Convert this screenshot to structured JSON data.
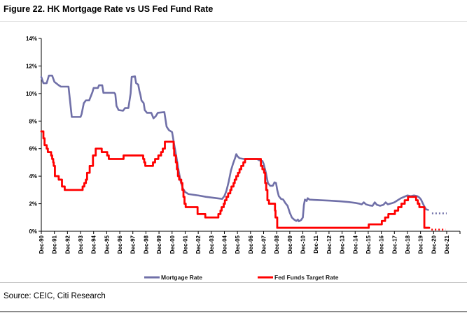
{
  "title": "Figure 22. HK Mortgage Rate vs US Fed Fund Rate",
  "source": "Source: CEIC, Citi Research",
  "chart_data": {
    "type": "line",
    "title": "Figure 22. HK Mortgage Rate vs US Fed Fund Rate",
    "xlabel": "",
    "ylabel": "",
    "gridlines": false,
    "legend_position": "bottom",
    "y_axis": {
      "min": 0,
      "max": 14,
      "step": 2,
      "suffix": "%"
    },
    "y_ticks": [
      "0%",
      "2%",
      "4%",
      "6%",
      "8%",
      "10%",
      "12%",
      "14%"
    ],
    "x_axis": {
      "first": "Dec-90",
      "last": "Dec-21",
      "anchor_year": 1990.92,
      "end_year": 2021.92
    },
    "x_ticks": [
      "Dec-90",
      "Dec-91",
      "Dec-92",
      "Dec-93",
      "Dec-94",
      "Dec-95",
      "Dec-96",
      "Dec-97",
      "Dec-98",
      "Dec-99",
      "Dec-00",
      "Dec-01",
      "Dec-02",
      "Dec-03",
      "Dec-04",
      "Dec-05",
      "Dec-06",
      "Dec-07",
      "Dec-08",
      "Dec-09",
      "Dec-10",
      "Dec-11",
      "Dec-12",
      "Dec-13",
      "Dec-14",
      "Dec-15",
      "Dec-16",
      "Dec-17",
      "Dec-18",
      "Dec-19",
      "Dec-20",
      "Dec-21"
    ],
    "series": [
      {
        "name": "Mortgage Rate",
        "color": "#7070A8",
        "mode": "linear",
        "width": 2.6,
        "points": [
          [
            1990.92,
            11.2
          ],
          [
            1991.08,
            10.75
          ],
          [
            1991.33,
            10.75
          ],
          [
            1991.5,
            11.3
          ],
          [
            1991.75,
            11.3
          ],
          [
            1991.92,
            10.85
          ],
          [
            1992.25,
            10.6
          ],
          [
            1992.42,
            10.5
          ],
          [
            1993.0,
            10.5
          ],
          [
            1993.17,
            9.0
          ],
          [
            1993.25,
            8.3
          ],
          [
            1993.92,
            8.3
          ],
          [
            1994.0,
            8.5
          ],
          [
            1994.17,
            9.3
          ],
          [
            1994.33,
            9.5
          ],
          [
            1994.58,
            9.5
          ],
          [
            1994.83,
            10.1
          ],
          [
            1994.92,
            10.4
          ],
          [
            1995.25,
            10.4
          ],
          [
            1995.33,
            10.6
          ],
          [
            1995.58,
            10.6
          ],
          [
            1995.67,
            10.05
          ],
          [
            1996.5,
            10.05
          ],
          [
            1996.58,
            9.95
          ],
          [
            1996.67,
            9.1
          ],
          [
            1996.83,
            8.8
          ],
          [
            1997.17,
            8.75
          ],
          [
            1997.33,
            8.95
          ],
          [
            1997.58,
            8.95
          ],
          [
            1997.75,
            10.0
          ],
          [
            1997.83,
            11.2
          ],
          [
            1998.08,
            11.25
          ],
          [
            1998.17,
            10.75
          ],
          [
            1998.33,
            10.65
          ],
          [
            1998.42,
            10.2
          ],
          [
            1998.5,
            9.9
          ],
          [
            1998.58,
            9.5
          ],
          [
            1998.75,
            9.3
          ],
          [
            1998.83,
            8.8
          ],
          [
            1999.0,
            8.6
          ],
          [
            1999.33,
            8.6
          ],
          [
            1999.5,
            8.2
          ],
          [
            1999.67,
            8.35
          ],
          [
            1999.83,
            8.6
          ],
          [
            2000.33,
            8.65
          ],
          [
            2000.5,
            7.6
          ],
          [
            2000.67,
            7.35
          ],
          [
            2000.92,
            7.2
          ],
          [
            2001.08,
            6.3
          ],
          [
            2001.25,
            5.4
          ],
          [
            2001.42,
            4.4
          ],
          [
            2001.58,
            3.6
          ],
          [
            2001.75,
            3.1
          ],
          [
            2001.92,
            2.85
          ],
          [
            2002.17,
            2.7
          ],
          [
            2002.92,
            2.6
          ],
          [
            2003.5,
            2.5
          ],
          [
            2004.33,
            2.4
          ],
          [
            2004.75,
            2.35
          ],
          [
            2004.92,
            2.55
          ],
          [
            2005.08,
            2.95
          ],
          [
            2005.25,
            3.6
          ],
          [
            2005.42,
            4.4
          ],
          [
            2005.58,
            4.9
          ],
          [
            2005.75,
            5.35
          ],
          [
            2005.83,
            5.6
          ],
          [
            2005.92,
            5.45
          ],
          [
            2006.08,
            5.3
          ],
          [
            2006.42,
            5.25
          ],
          [
            2007.42,
            5.25
          ],
          [
            2007.58,
            5.15
          ],
          [
            2007.83,
            5.1
          ],
          [
            2007.92,
            4.9
          ],
          [
            2008.08,
            4.3
          ],
          [
            2008.25,
            3.5
          ],
          [
            2008.42,
            3.3
          ],
          [
            2008.62,
            3.3
          ],
          [
            2008.75,
            3.55
          ],
          [
            2008.87,
            3.5
          ],
          [
            2008.96,
            3.0
          ],
          [
            2009.08,
            2.55
          ],
          [
            2009.25,
            2.35
          ],
          [
            2009.42,
            2.3
          ],
          [
            2009.58,
            2.05
          ],
          [
            2009.75,
            1.85
          ],
          [
            2009.92,
            1.35
          ],
          [
            2010.08,
            1.0
          ],
          [
            2010.25,
            0.85
          ],
          [
            2010.42,
            0.75
          ],
          [
            2010.54,
            0.85
          ],
          [
            2010.62,
            0.72
          ],
          [
            2010.79,
            0.82
          ],
          [
            2010.92,
            1.0
          ],
          [
            2011.0,
            1.9
          ],
          [
            2011.08,
            2.3
          ],
          [
            2011.21,
            2.2
          ],
          [
            2011.29,
            2.4
          ],
          [
            2011.42,
            2.3
          ],
          [
            2011.75,
            2.28
          ],
          [
            2012.42,
            2.25
          ],
          [
            2013.0,
            2.22
          ],
          [
            2013.75,
            2.18
          ],
          [
            2014.42,
            2.12
          ],
          [
            2015.0,
            2.05
          ],
          [
            2015.25,
            2.0
          ],
          [
            2015.42,
            1.95
          ],
          [
            2015.58,
            2.1
          ],
          [
            2015.75,
            1.95
          ],
          [
            2016.0,
            1.88
          ],
          [
            2016.25,
            1.85
          ],
          [
            2016.42,
            2.1
          ],
          [
            2016.58,
            1.92
          ],
          [
            2016.83,
            1.85
          ],
          [
            2017.08,
            1.92
          ],
          [
            2017.25,
            2.1
          ],
          [
            2017.42,
            1.95
          ],
          [
            2017.67,
            2.02
          ],
          [
            2017.92,
            2.1
          ],
          [
            2018.17,
            2.25
          ],
          [
            2018.42,
            2.4
          ],
          [
            2018.67,
            2.5
          ],
          [
            2018.92,
            2.6
          ],
          [
            2019.17,
            2.55
          ],
          [
            2019.42,
            2.6
          ],
          [
            2019.67,
            2.55
          ],
          [
            2019.83,
            2.45
          ],
          [
            2019.96,
            2.3
          ],
          [
            2020.08,
            2.05
          ],
          [
            2020.21,
            1.8
          ],
          [
            2020.33,
            1.6
          ],
          [
            2020.5,
            1.55
          ]
        ],
        "forecast_style": "dotted",
        "forecast": [
          [
            2020.79,
            1.3
          ],
          [
            2021.92,
            1.3
          ]
        ]
      },
      {
        "name": "Fed Funds Target Rate",
        "color": "#FF0000",
        "mode": "step",
        "width": 2.8,
        "solid_end": 2020.58,
        "points": [
          [
            1990.92,
            7.25
          ],
          [
            1991.08,
            6.75
          ],
          [
            1991.17,
            6.25
          ],
          [
            1991.33,
            6.0
          ],
          [
            1991.42,
            5.75
          ],
          [
            1991.67,
            5.5
          ],
          [
            1991.75,
            5.25
          ],
          [
            1991.83,
            5.0
          ],
          [
            1991.87,
            4.75
          ],
          [
            1991.96,
            4.0
          ],
          [
            1992.25,
            3.75
          ],
          [
            1992.5,
            3.25
          ],
          [
            1992.71,
            3.0
          ],
          [
            1994.08,
            3.25
          ],
          [
            1994.21,
            3.5
          ],
          [
            1994.33,
            3.75
          ],
          [
            1994.42,
            4.25
          ],
          [
            1994.62,
            4.75
          ],
          [
            1994.87,
            5.5
          ],
          [
            1995.08,
            6.0
          ],
          [
            1995.54,
            5.75
          ],
          [
            1995.96,
            5.5
          ],
          [
            1996.08,
            5.25
          ],
          [
            1997.21,
            5.5
          ],
          [
            1998.71,
            5.25
          ],
          [
            1998.79,
            5.0
          ],
          [
            1998.87,
            4.75
          ],
          [
            1999.46,
            5.0
          ],
          [
            1999.62,
            5.25
          ],
          [
            1999.87,
            5.5
          ],
          [
            2000.08,
            5.75
          ],
          [
            2000.21,
            6.0
          ],
          [
            2000.37,
            6.5
          ],
          [
            2001.04,
            6.0
          ],
          [
            2001.08,
            5.5
          ],
          [
            2001.21,
            5.0
          ],
          [
            2001.29,
            4.5
          ],
          [
            2001.37,
            4.0
          ],
          [
            2001.46,
            3.75
          ],
          [
            2001.62,
            3.5
          ],
          [
            2001.71,
            3.0
          ],
          [
            2001.79,
            2.5
          ],
          [
            2001.87,
            2.0
          ],
          [
            2001.96,
            1.75
          ],
          [
            2002.87,
            1.25
          ],
          [
            2003.46,
            1.0
          ],
          [
            2004.46,
            1.25
          ],
          [
            2004.62,
            1.5
          ],
          [
            2004.71,
            1.75
          ],
          [
            2004.87,
            2.0
          ],
          [
            2004.96,
            2.25
          ],
          [
            2005.08,
            2.5
          ],
          [
            2005.21,
            2.75
          ],
          [
            2005.37,
            3.0
          ],
          [
            2005.46,
            3.25
          ],
          [
            2005.62,
            3.5
          ],
          [
            2005.71,
            3.75
          ],
          [
            2005.83,
            4.0
          ],
          [
            2005.96,
            4.25
          ],
          [
            2006.08,
            4.5
          ],
          [
            2006.21,
            4.75
          ],
          [
            2006.37,
            5.0
          ],
          [
            2006.5,
            5.25
          ],
          [
            2007.71,
            4.75
          ],
          [
            2007.83,
            4.5
          ],
          [
            2007.96,
            4.25
          ],
          [
            2008.04,
            3.5
          ],
          [
            2008.12,
            3.0
          ],
          [
            2008.21,
            2.25
          ],
          [
            2008.33,
            2.0
          ],
          [
            2008.79,
            1.5
          ],
          [
            2008.83,
            1.0
          ],
          [
            2008.96,
            0.25
          ],
          [
            2015.96,
            0.5
          ],
          [
            2016.96,
            0.75
          ],
          [
            2017.21,
            1.0
          ],
          [
            2017.46,
            1.25
          ],
          [
            2017.96,
            1.5
          ],
          [
            2018.21,
            1.75
          ],
          [
            2018.46,
            2.0
          ],
          [
            2018.71,
            2.25
          ],
          [
            2018.96,
            2.5
          ],
          [
            2019.58,
            2.25
          ],
          [
            2019.71,
            2.0
          ],
          [
            2019.83,
            1.75
          ],
          [
            2020.21,
            0.25
          ]
        ],
        "forecast_style": "dotted",
        "forecast": [
          [
            2020.75,
            0.12
          ],
          [
            2021.83,
            0.12
          ]
        ]
      }
    ]
  }
}
